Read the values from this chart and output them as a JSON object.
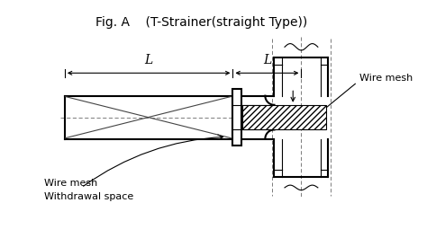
{
  "title": "Fig. A    (T-Strainer(straight Type))",
  "title_fontsize": 10,
  "bg_color": "#ffffff",
  "line_color": "#000000",
  "label_wire_mesh_right": "Wire mesh",
  "label_wire_mesh_left": "Wire mesh",
  "label_withdrawal": "Withdrawal space",
  "dim_label_L1": "L",
  "dim_label_L2": "L",
  "dim_color": "#000000"
}
